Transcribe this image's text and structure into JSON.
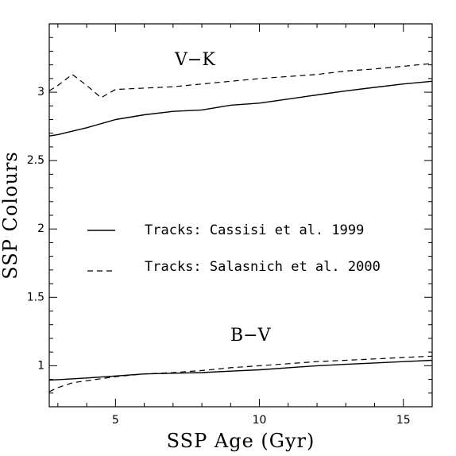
{
  "chart_data": {
    "type": "line",
    "xlabel": "SSP Age (Gyr)",
    "ylabel": "SSP Colours",
    "xlim": [
      2.7,
      16
    ],
    "ylim": [
      0.7,
      3.5
    ],
    "xticks_major": [
      5,
      10,
      15
    ],
    "yticks_major": [
      1,
      1.5,
      2,
      2.5,
      3
    ],
    "xtick_labels": [
      "5",
      "10",
      "15"
    ],
    "ytick_labels": [
      "1",
      "1.5",
      "2",
      "2.5",
      "3"
    ],
    "grid": false,
    "legend_position": "center-left",
    "annotations": [
      {
        "text": "V−K",
        "x": 8.7,
        "y": 3.26
      },
      {
        "text": "B−V",
        "x": 8.3,
        "y": 1.22
      }
    ],
    "legend": [
      {
        "label": "Tracks: Cassisi et al. 1999",
        "style": "solid"
      },
      {
        "label": "Tracks: Salasnich et al. 2000",
        "style": "dashed"
      }
    ],
    "series": [
      {
        "name": "Tracks: Cassisi et al. 1999",
        "group": "V-K",
        "style": "solid",
        "x": [
          2.7,
          3,
          4,
          5,
          6,
          7,
          8,
          9,
          10,
          11,
          12,
          13,
          14,
          15,
          16
        ],
        "y": [
          2.68,
          2.69,
          2.74,
          2.8,
          2.835,
          2.86,
          2.87,
          2.905,
          2.92,
          2.95,
          2.98,
          3.01,
          3.035,
          3.06,
          3.08
        ]
      },
      {
        "name": "Tracks: Salasnich et al. 2000",
        "group": "V-K",
        "style": "dashed",
        "x": [
          2.7,
          3,
          3.5,
          4,
          4.5,
          5,
          6,
          7,
          8,
          9,
          10,
          11,
          12,
          13,
          14,
          15,
          16
        ],
        "y": [
          3.01,
          3.05,
          3.13,
          3.05,
          2.96,
          3.02,
          3.03,
          3.04,
          3.06,
          3.08,
          3.1,
          3.115,
          3.13,
          3.155,
          3.17,
          3.19,
          3.21
        ]
      },
      {
        "name": "Tracks: Cassisi et al. 1999",
        "group": "B-V",
        "style": "solid",
        "x": [
          2.7,
          3,
          4,
          5,
          6,
          7,
          8,
          9,
          10,
          11,
          12,
          13,
          14,
          15,
          16
        ],
        "y": [
          0.895,
          0.898,
          0.91,
          0.925,
          0.94,
          0.945,
          0.95,
          0.96,
          0.97,
          0.985,
          1.0,
          1.01,
          1.02,
          1.03,
          1.04
        ]
      },
      {
        "name": "Tracks: Salasnich et al. 2000",
        "group": "B-V",
        "style": "dashed",
        "x": [
          2.7,
          3,
          3.5,
          4,
          5,
          6,
          7,
          8,
          9,
          10,
          11,
          12,
          13,
          14,
          15,
          16
        ],
        "y": [
          0.81,
          0.84,
          0.875,
          0.89,
          0.92,
          0.94,
          0.95,
          0.965,
          0.985,
          1.0,
          1.015,
          1.03,
          1.04,
          1.05,
          1.06,
          1.07
        ]
      }
    ]
  }
}
